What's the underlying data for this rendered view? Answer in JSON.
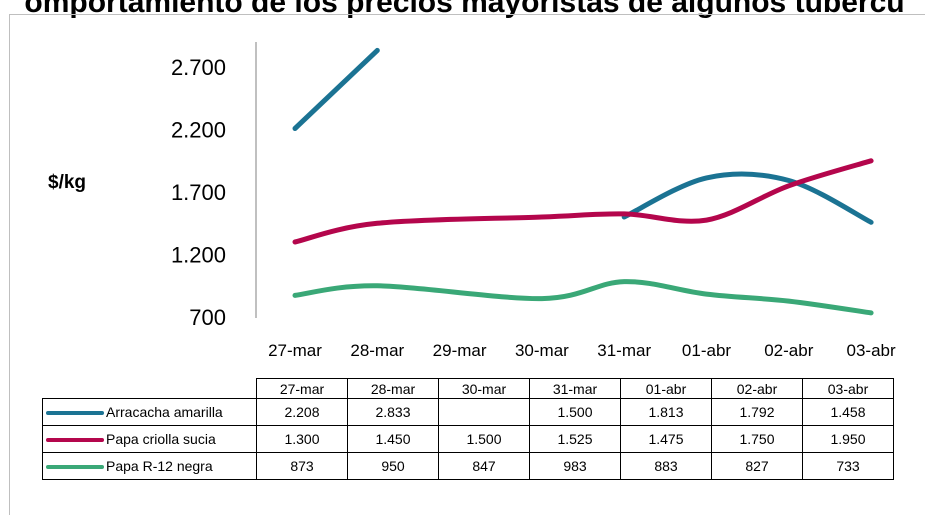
{
  "title": "omportamiento de los precios mayoristas de algunos tubércu",
  "chart_data": {
    "type": "line",
    "ylabel": "$/kg",
    "ylim": [
      700,
      2700
    ],
    "yticks": [
      "700",
      "1.200",
      "1.700",
      "2.200",
      "2.700"
    ],
    "categories": [
      "27-mar",
      "28-mar",
      "29-mar",
      "30-mar",
      "31-mar",
      "01-abr",
      "02-abr",
      "03-abr"
    ],
    "series": [
      {
        "name": "Arracacha amarilla",
        "color": "#1b7393",
        "values": [
          2208,
          2833,
          null,
          null,
          1500,
          1813,
          1792,
          1458
        ]
      },
      {
        "name": "Papa criolla sucia",
        "color": "#b4064c",
        "values": [
          1300,
          1450,
          null,
          1500,
          1525,
          1475,
          1750,
          1950
        ]
      },
      {
        "name": "Papa R-12 negra",
        "color": "#3aa877",
        "values": [
          873,
          950,
          null,
          847,
          983,
          883,
          827,
          733
        ]
      }
    ],
    "table": {
      "header": [
        "27-mar",
        "28-mar",
        "30-mar",
        "31-mar",
        "01-abr",
        "02-abr",
        "03-abr"
      ],
      "rows": [
        {
          "label": "Arracacha amarilla",
          "values": [
            "2.208",
            "2.833",
            "",
            "1.500",
            "1.813",
            "1.792",
            "1.458"
          ]
        },
        {
          "label": "Papa criolla sucia",
          "values": [
            "1.300",
            "1.450",
            "1.500",
            "1.525",
            "1.475",
            "1.750",
            "1.950"
          ]
        },
        {
          "label": "Papa R-12 negra",
          "values": [
            "873",
            "950",
            "847",
            "983",
            "883",
            "827",
            "733"
          ]
        }
      ]
    },
    "grid": false,
    "legend": "data table"
  }
}
